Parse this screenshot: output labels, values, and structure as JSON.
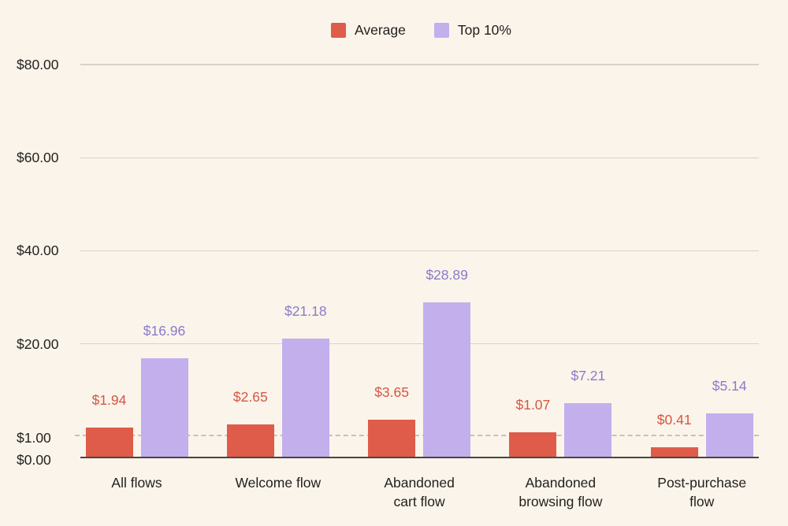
{
  "colors": {
    "background": "#FAF4EB",
    "grid": "#D8D3C9",
    "dashed_line": "#C7C1B5",
    "axis_line": "#4A463F",
    "text": "#211F1C",
    "average_bar": "#DE5C49",
    "average_label": "#D6573F",
    "top10_bar": "#C2AFEC",
    "top10_label": "#8A7BCB"
  },
  "chart_data": {
    "type": "bar",
    "title": "",
    "categories": [
      "All flows",
      "Welcome flow",
      "Abandoned cart flow",
      "Abandoned browsing flow",
      "Post-purchase flow"
    ],
    "category_lines": [
      [
        "All flows"
      ],
      [
        "Welcome flow"
      ],
      [
        "Abandoned",
        "cart flow"
      ],
      [
        "Abandoned",
        "browsing flow"
      ],
      [
        "Post-purchase",
        "flow"
      ]
    ],
    "series": [
      {
        "name": "Average",
        "color": "#DE5C49",
        "label_color": "#D6573F",
        "values": [
          1.94,
          2.65,
          3.65,
          1.07,
          0.41
        ],
        "value_labels": [
          "$1.94",
          "$2.65",
          "$3.65",
          "$1.07",
          "$0.41"
        ]
      },
      {
        "name": "Top 10%",
        "color": "#C2AFEC",
        "label_color": "#8A7BCB",
        "values": [
          16.96,
          21.18,
          28.89,
          7.21,
          5.14
        ],
        "value_labels": [
          "$16.96",
          "$21.18",
          "$28.89",
          "$7.21",
          "$5.14"
        ]
      }
    ],
    "y_axis": {
      "range": [
        0,
        80
      ],
      "ticks": [
        {
          "value": 80,
          "label": "$80.00"
        },
        {
          "value": 60,
          "label": "$60.00"
        },
        {
          "value": 40,
          "label": "$40.00"
        },
        {
          "value": 20,
          "label": "$20.00"
        },
        {
          "value": 1,
          "label": "$1.00",
          "dashed": true
        },
        {
          "value": 0,
          "label": "$0.00"
        }
      ]
    },
    "grid": "horizontal",
    "legend_position": "top-center",
    "note": "y scale is stretched below $1 (piecewise)"
  }
}
